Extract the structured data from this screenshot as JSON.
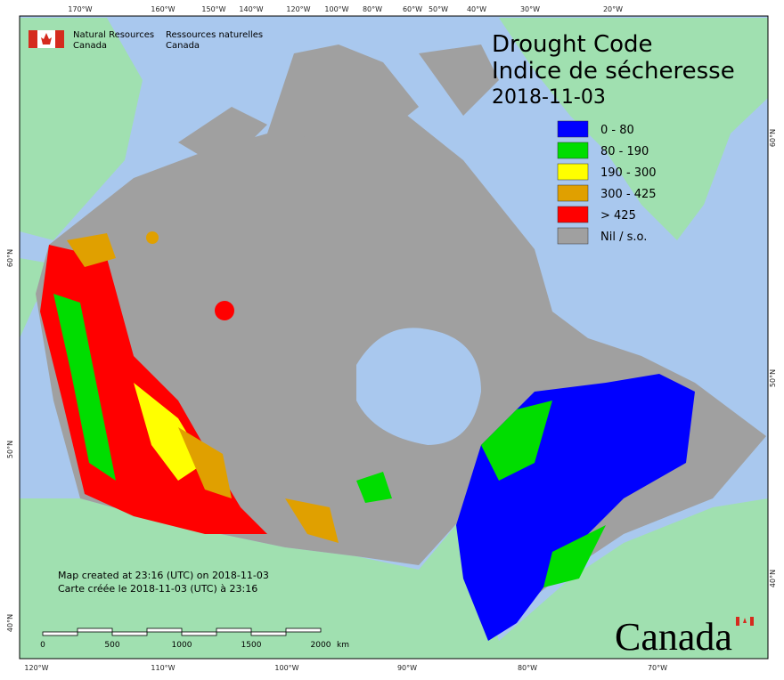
{
  "header": {
    "org_en": [
      "Natural Resources",
      "Canada"
    ],
    "org_fr": [
      "Ressources naturelles",
      "Canada"
    ]
  },
  "title": [
    "Drought Code",
    "Indice de sécheresse"
  ],
  "date": "2018-11-03",
  "legend": [
    {
      "label": "0 - 80",
      "color": "#0000ff"
    },
    {
      "label": "80 - 190",
      "color": "#00dd00"
    },
    {
      "label": "190 - 300",
      "color": "#ffff00"
    },
    {
      "label": "300 - 425",
      "color": "#e0a000"
    },
    {
      "label": "> 425",
      "color": "#ff0000"
    },
    {
      "label": "Nil / s.o.",
      "color": "#a0a0a0"
    }
  ],
  "notes": [
    "Map created at 23:16 (UTC) on 2018-11-03",
    "Carte créée le 2018-11-03 (UTC) à 23:16"
  ],
  "scale_bar": {
    "ticks": [
      "0",
      "500",
      "1000",
      "1500",
      "2000"
    ],
    "unit": "km"
  },
  "graticule": {
    "top": [
      "170°W",
      "160°W",
      "150°W",
      "140°W",
      "120°W",
      "100°W",
      "80°W",
      "60°W",
      "50°W",
      "40°W",
      "30°W",
      "20°W"
    ],
    "bottom": [
      "120°W",
      "110°W",
      "100°W",
      "90°W",
      "80°W",
      "70°W"
    ],
    "left": [
      "60°N",
      "50°N",
      "40°N"
    ],
    "right": [
      "60°N",
      "50°N",
      "40°N"
    ]
  },
  "wordmark": "Canada"
}
